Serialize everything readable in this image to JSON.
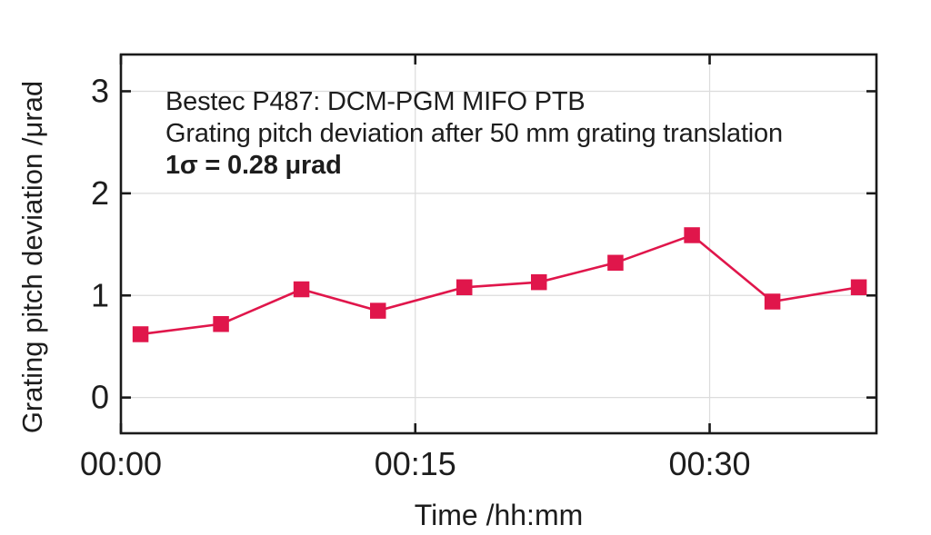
{
  "chart_data": {
    "type": "line",
    "annotation": [
      "Bestec P487: DCM-PGM MIFO PTB",
      "Grating pitch deviation after 50 mm grating translation",
      "1σ = 0.28 μrad"
    ],
    "xlabel": "Time /hh:mm",
    "ylabel": "Grating pitch deviation /μrad",
    "x_unit_minutes": true,
    "x": [
      1.0,
      5.1,
      9.2,
      13.1,
      17.5,
      21.3,
      25.2,
      29.1,
      33.2,
      37.6
    ],
    "y": [
      0.62,
      0.72,
      1.06,
      0.85,
      1.08,
      1.13,
      1.32,
      1.59,
      0.94,
      1.08
    ],
    "xlim": [
      0,
      38.5
    ],
    "ylim": [
      -0.35,
      3.36
    ],
    "x_ticks": [
      {
        "value": 0,
        "label": "00:00"
      },
      {
        "value": 15,
        "label": "00:15"
      },
      {
        "value": 30,
        "label": "00:30"
      }
    ],
    "y_ticks": [
      {
        "value": 0,
        "label": "0"
      },
      {
        "value": 1,
        "label": "1"
      },
      {
        "value": 2,
        "label": "2"
      },
      {
        "value": 3,
        "label": "3"
      }
    ],
    "grid": true,
    "legend": "none",
    "marker": "square",
    "colors": {
      "series": "#e0164b",
      "grid": "#dcdcdc",
      "frame": "#1a1a1a",
      "text": "#1d1d1d"
    }
  }
}
